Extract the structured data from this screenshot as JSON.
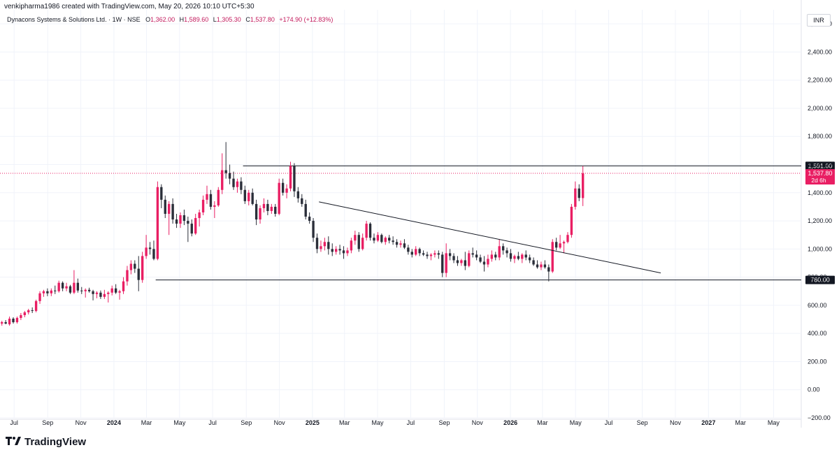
{
  "header": {
    "attribution": "venkipharma1986 created with TradingView.com, May 20, 2026 10:10 UTC+5:30",
    "symbol": "Dynacons Systems & Solutions Ltd. · 1W · NSE",
    "open_label": "O",
    "open": "1,362.00",
    "high_label": "H",
    "high": "1,589.60",
    "low_label": "L",
    "low": "1,305.30",
    "close_label": "C",
    "close": "1,537.80",
    "change": "+174.90 (+12.83%)"
  },
  "currency": "INR",
  "footer": {
    "brand": "TradingView",
    "logo_icon": "tradingview-logo-icon"
  },
  "colors": {
    "up": "#e91e63",
    "down": "#2a2e39",
    "grid": "#f0f3fa",
    "line": "#131722",
    "price_line": "#e91e63"
  },
  "chart_data": {
    "type": "candlestick",
    "interval": "1W",
    "ylim": [
      -200,
      2700
    ],
    "y_ticks": [
      -200,
      0,
      200,
      400,
      600,
      800,
      1000,
      1200,
      1400,
      1600,
      1800,
      2000,
      2200,
      2400,
      2600
    ],
    "y_tick_labels": [
      "−200.00",
      "0.00",
      "200.00",
      "400.00",
      "600.00",
      "800.00",
      "1,000.00",
      "1,200.00",
      "1,400.00",
      "1,600.00",
      "1,800.00",
      "2,000.00",
      "2,200.00",
      "2,400.00",
      "2,600.00"
    ],
    "x_range": [
      "2023-06-05",
      "2027-06-21"
    ],
    "x_ticks": [
      {
        "date": "2023-07-01",
        "label": "Jul",
        "bold": false
      },
      {
        "date": "2023-09-01",
        "label": "Sep",
        "bold": false
      },
      {
        "date": "2023-11-01",
        "label": "Nov",
        "bold": false
      },
      {
        "date": "2024-01-01",
        "label": "2024",
        "bold": true
      },
      {
        "date": "2024-03-01",
        "label": "Mar",
        "bold": false
      },
      {
        "date": "2024-05-01",
        "label": "May",
        "bold": false
      },
      {
        "date": "2024-07-01",
        "label": "Jul",
        "bold": false
      },
      {
        "date": "2024-09-01",
        "label": "Sep",
        "bold": false
      },
      {
        "date": "2024-11-01",
        "label": "Nov",
        "bold": false
      },
      {
        "date": "2025-01-01",
        "label": "2025",
        "bold": true
      },
      {
        "date": "2025-03-01",
        "label": "Mar",
        "bold": false
      },
      {
        "date": "2025-05-01",
        "label": "May",
        "bold": false
      },
      {
        "date": "2025-07-01",
        "label": "Jul",
        "bold": false
      },
      {
        "date": "2025-09-01",
        "label": "Sep",
        "bold": false
      },
      {
        "date": "2025-11-01",
        "label": "Nov",
        "bold": false
      },
      {
        "date": "2026-01-01",
        "label": "2026",
        "bold": true
      },
      {
        "date": "2026-03-01",
        "label": "Mar",
        "bold": false
      },
      {
        "date": "2026-05-01",
        "label": "May",
        "bold": false
      },
      {
        "date": "2026-07-01",
        "label": "Jul",
        "bold": false
      },
      {
        "date": "2026-09-01",
        "label": "Sep",
        "bold": false
      },
      {
        "date": "2026-11-01",
        "label": "Nov",
        "bold": false
      },
      {
        "date": "2027-01-01",
        "label": "2027",
        "bold": true
      },
      {
        "date": "2027-03-01",
        "label": "Mar",
        "bold": false
      },
      {
        "date": "2027-05-01",
        "label": "May",
        "bold": false
      }
    ],
    "candles": {
      "start_week": "2023-06-05",
      "fields": [
        "open",
        "high",
        "low",
        "close"
      ],
      "ohlc": [
        [
          470,
          490,
          455,
          480
        ],
        [
          480,
          495,
          465,
          470
        ],
        [
          465,
          520,
          455,
          505
        ],
        [
          505,
          515,
          470,
          480
        ],
        [
          480,
          520,
          470,
          510
        ],
        [
          510,
          545,
          495,
          530
        ],
        [
          530,
          560,
          515,
          550
        ],
        [
          550,
          575,
          535,
          565
        ],
        [
          565,
          585,
          545,
          560
        ],
        [
          560,
          640,
          550,
          630
        ],
        [
          630,
          700,
          610,
          685
        ],
        [
          685,
          710,
          660,
          700
        ],
        [
          700,
          720,
          665,
          685
        ],
        [
          685,
          720,
          665,
          705
        ],
        [
          705,
          740,
          680,
          700
        ],
        [
          700,
          775,
          690,
          760
        ],
        [
          760,
          770,
          700,
          720
        ],
        [
          720,
          760,
          700,
          735
        ],
        [
          735,
          745,
          680,
          690
        ],
        [
          690,
          850,
          680,
          760
        ],
        [
          760,
          790,
          690,
          705
        ],
        [
          705,
          730,
          680,
          700
        ],
        [
          700,
          720,
          655,
          710
        ],
        [
          710,
          725,
          690,
          700
        ],
        [
          700,
          710,
          635,
          680
        ],
        [
          680,
          700,
          650,
          690
        ],
        [
          690,
          705,
          645,
          660
        ],
        [
          660,
          710,
          645,
          680
        ],
        [
          680,
          700,
          620,
          690
        ],
        [
          690,
          740,
          670,
          720
        ],
        [
          720,
          750,
          680,
          690
        ],
        [
          690,
          710,
          640,
          700
        ],
        [
          700,
          800,
          680,
          770
        ],
        [
          770,
          880,
          740,
          850
        ],
        [
          850,
          920,
          820,
          895
        ],
        [
          895,
          920,
          830,
          860
        ],
        [
          860,
          950,
          700,
          780
        ],
        [
          780,
          980,
          760,
          950
        ],
        [
          950,
          1100,
          930,
          1010
        ],
        [
          1010,
          1050,
          960,
          1000
        ],
        [
          1000,
          1060,
          920,
          930
        ],
        [
          930,
          1480,
          920,
          1440
        ],
        [
          1440,
          1460,
          1290,
          1350
        ],
        [
          1350,
          1380,
          1220,
          1250
        ],
        [
          1250,
          1340,
          1100,
          1320
        ],
        [
          1320,
          1360,
          1180,
          1210
        ],
        [
          1210,
          1250,
          1150,
          1180
        ],
        [
          1180,
          1260,
          1150,
          1240
        ],
        [
          1240,
          1280,
          1170,
          1200
        ],
        [
          1200,
          1230,
          1050,
          1180
        ],
        [
          1180,
          1210,
          1090,
          1110
        ],
        [
          1110,
          1250,
          1100,
          1220
        ],
        [
          1220,
          1280,
          1160,
          1260
        ],
        [
          1260,
          1380,
          1240,
          1350
        ],
        [
          1350,
          1450,
          1320,
          1390
        ],
        [
          1390,
          1420,
          1280,
          1300
        ],
        [
          1300,
          1340,
          1220,
          1310
        ],
        [
          1310,
          1440,
          1300,
          1420
        ],
        [
          1420,
          1680,
          1390,
          1560
        ],
        [
          1560,
          1760,
          1500,
          1540
        ],
        [
          1540,
          1600,
          1460,
          1500
        ],
        [
          1500,
          1550,
          1420,
          1440
        ],
        [
          1440,
          1500,
          1400,
          1480
        ],
        [
          1480,
          1510,
          1390,
          1420
        ],
        [
          1420,
          1450,
          1320,
          1340
        ],
        [
          1340,
          1420,
          1310,
          1400
        ],
        [
          1400,
          1430,
          1310,
          1320
        ],
        [
          1320,
          1350,
          1170,
          1210
        ],
        [
          1210,
          1310,
          1180,
          1290
        ],
        [
          1290,
          1360,
          1260,
          1320
        ],
        [
          1320,
          1350,
          1240,
          1270
        ],
        [
          1270,
          1320,
          1250,
          1300
        ],
        [
          1300,
          1320,
          1230,
          1250
        ],
        [
          1250,
          1500,
          1240,
          1470
        ],
        [
          1470,
          1500,
          1380,
          1400
        ],
        [
          1400,
          1460,
          1360,
          1430
        ],
        [
          1430,
          1620,
          1410,
          1590
        ],
        [
          1590,
          1610,
          1370,
          1410
        ],
        [
          1410,
          1440,
          1330,
          1360
        ],
        [
          1360,
          1390,
          1300,
          1320
        ],
        [
          1320,
          1350,
          1210,
          1230
        ],
        [
          1230,
          1260,
          1180,
          1200
        ],
        [
          1200,
          1220,
          1050,
          1080
        ],
        [
          1080,
          1110,
          970,
          1000
        ],
        [
          1000,
          1060,
          980,
          1020
        ],
        [
          1020,
          1080,
          990,
          1050
        ],
        [
          1050,
          1090,
          960,
          1000
        ],
        [
          1000,
          1040,
          950,
          980
        ],
        [
          980,
          1020,
          960,
          1000
        ],
        [
          1000,
          1030,
          960,
          990
        ],
        [
          990,
          1020,
          930,
          970
        ],
        [
          970,
          1010,
          950,
          990
        ],
        [
          990,
          1080,
          970,
          1060
        ],
        [
          1060,
          1130,
          1030,
          1100
        ],
        [
          1100,
          1120,
          980,
          1000
        ],
        [
          1000,
          1110,
          990,
          1080
        ],
        [
          1080,
          1200,
          1060,
          1180
        ],
        [
          1180,
          1190,
          1060,
          1080
        ],
        [
          1080,
          1110,
          1040,
          1060
        ],
        [
          1060,
          1120,
          1050,
          1100
        ],
        [
          1100,
          1110,
          1040,
          1050
        ],
        [
          1050,
          1090,
          1030,
          1080
        ],
        [
          1080,
          1100,
          1040,
          1060
        ],
        [
          1060,
          1090,
          1030,
          1050
        ],
        [
          1050,
          1070,
          1010,
          1030
        ],
        [
          1030,
          1060,
          1010,
          1040
        ],
        [
          1040,
          1070,
          1000,
          1010
        ],
        [
          1010,
          1030,
          960,
          980
        ],
        [
          980,
          1000,
          940,
          960
        ],
        [
          960,
          1020,
          950,
          1000
        ],
        [
          1000,
          1010,
          950,
          970
        ],
        [
          970,
          990,
          950,
          960
        ],
        [
          960,
          980,
          930,
          950
        ],
        [
          950,
          970,
          920,
          960
        ],
        [
          960,
          990,
          940,
          970
        ],
        [
          970,
          990,
          930,
          960
        ],
        [
          960,
          980,
          800,
          830
        ],
        [
          830,
          1040,
          800,
          970
        ],
        [
          970,
          1000,
          920,
          950
        ],
        [
          950,
          970,
          900,
          920
        ],
        [
          920,
          950,
          880,
          900
        ],
        [
          900,
          930,
          880,
          920
        ],
        [
          920,
          980,
          850,
          880
        ],
        [
          880,
          990,
          870,
          970
        ],
        [
          970,
          1010,
          940,
          960
        ],
        [
          960,
          990,
          920,
          940
        ],
        [
          940,
          960,
          900,
          910
        ],
        [
          910,
          950,
          840,
          890
        ],
        [
          890,
          960,
          870,
          930
        ],
        [
          930,
          990,
          910,
          960
        ],
        [
          960,
          980,
          920,
          940
        ],
        [
          940,
          1070,
          920,
          1020
        ],
        [
          1020,
          1040,
          960,
          990
        ],
        [
          990,
          1010,
          940,
          970
        ],
        [
          970,
          1000,
          910,
          930
        ],
        [
          930,
          960,
          900,
          950
        ],
        [
          950,
          980,
          920,
          930
        ],
        [
          930,
          970,
          900,
          960
        ],
        [
          960,
          990,
          920,
          940
        ],
        [
          940,
          960,
          900,
          920
        ],
        [
          920,
          940,
          880,
          890
        ],
        [
          890,
          920,
          860,
          870
        ],
        [
          870,
          910,
          850,
          890
        ],
        [
          890,
          920,
          860,
          870
        ],
        [
          870,
          890,
          770,
          840
        ],
        [
          840,
          1070,
          830,
          1050
        ],
        [
          1050,
          1080,
          990,
          1010
        ],
        [
          1010,
          1100,
          1000,
          1040
        ],
        [
          1040,
          1060,
          970,
          1050
        ],
        [
          1050,
          1120,
          1040,
          1100
        ],
        [
          1100,
          1320,
          1080,
          1300
        ],
        [
          1300,
          1480,
          1280,
          1430
        ],
        [
          1430,
          1460,
          1340,
          1363
        ],
        [
          1362,
          1589.6,
          1305.3,
          1537.8
        ]
      ]
    },
    "horizontal_levels": [
      {
        "value": 1591,
        "label": "1,591.00",
        "from_date": "2024-08-26"
      },
      {
        "value": 780,
        "label": "780.00",
        "from_date": "2024-03-18"
      }
    ],
    "trendline": {
      "from": {
        "date": "2025-01-13",
        "value": 1335
      },
      "to": {
        "date": "2026-10-05",
        "value": 830
      }
    },
    "last_price": {
      "value": 1537.8,
      "label": "1,537.80",
      "countdown": "2d 6h"
    }
  }
}
